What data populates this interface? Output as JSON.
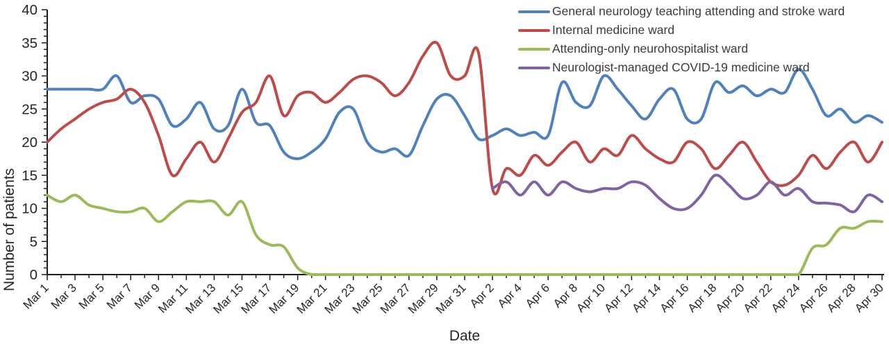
{
  "chart_data": {
    "type": "line",
    "title": "",
    "xlabel": "Date",
    "ylabel": "Number of patients",
    "ylim": [
      0,
      40
    ],
    "y_major_step": 5,
    "y_minor_step": 1,
    "x_label_every_days": 2,
    "grid": false,
    "legend_position": "top-right",
    "x": [
      "Mar 1",
      "Mar 2",
      "Mar 3",
      "Mar 4",
      "Mar 5",
      "Mar 6",
      "Mar 7",
      "Mar 8",
      "Mar 9",
      "Mar 10",
      "Mar 11",
      "Mar 12",
      "Mar 13",
      "Mar 14",
      "Mar 15",
      "Mar 16",
      "Mar 17",
      "Mar 18",
      "Mar 19",
      "Mar 20",
      "Mar 21",
      "Mar 22",
      "Mar 23",
      "Mar 24",
      "Mar 25",
      "Mar 26",
      "Mar 27",
      "Mar 28",
      "Mar 29",
      "Mar 30",
      "Mar 31",
      "Apr 1",
      "Apr 2",
      "Apr 3",
      "Apr 4",
      "Apr 5",
      "Apr 6",
      "Apr 7",
      "Apr 8",
      "Apr 9",
      "Apr 10",
      "Apr 11",
      "Apr 12",
      "Apr 13",
      "Apr 14",
      "Apr 15",
      "Apr 16",
      "Apr 17",
      "Apr 18",
      "Apr 19",
      "Apr 20",
      "Apr 21",
      "Apr 22",
      "Apr 23",
      "Apr 24",
      "Apr 25",
      "Apr 26",
      "Apr 27",
      "Apr 28",
      "Apr 29",
      "Apr 30"
    ],
    "series": [
      {
        "name": "General neurology teaching attending and stroke ward",
        "color": "#4F81BD",
        "values": [
          28,
          28,
          28,
          28,
          28,
          30,
          26,
          27,
          26.5,
          22.5,
          23.5,
          26,
          22,
          22.5,
          28,
          23,
          22.5,
          18.5,
          17.5,
          18.5,
          20.5,
          24.5,
          25,
          20,
          18.5,
          19,
          18,
          22.5,
          26.5,
          27,
          24,
          20.5,
          21,
          22,
          21,
          21.5,
          21,
          29,
          26,
          25.5,
          30,
          28,
          25.5,
          23.5,
          26.5,
          28,
          23.5,
          23.5,
          29,
          27.5,
          28.5,
          27,
          28,
          27.5,
          31,
          28,
          24,
          25,
          23,
          24,
          23
        ]
      },
      {
        "name": "Internal medicine ward",
        "color": "#BE4B48",
        "values": [
          20,
          22,
          23.5,
          25,
          26,
          26.5,
          28,
          26,
          21,
          15,
          17.5,
          20,
          17,
          20.5,
          24.5,
          26,
          30,
          24,
          27,
          27.5,
          26,
          27.5,
          29.5,
          30,
          29,
          27,
          29,
          33,
          35,
          30,
          30,
          33.5,
          13,
          16,
          15,
          18,
          16.5,
          18.5,
          20,
          17,
          19,
          18,
          21,
          19,
          17.5,
          17,
          20,
          19,
          16,
          18,
          20,
          17,
          14,
          13.5,
          15,
          18,
          16,
          18.5,
          20,
          17,
          20
        ]
      },
      {
        "name": "Attending-only neurohospitalist ward",
        "color": "#9BBB59",
        "values": [
          12,
          11,
          12,
          10.5,
          10,
          9.5,
          9.5,
          10,
          8,
          9.5,
          11,
          11,
          11,
          9,
          11,
          6,
          4.5,
          4.2,
          1,
          0,
          0,
          0,
          0,
          0,
          0,
          0,
          0,
          0,
          0,
          0,
          0,
          0,
          0,
          0,
          0,
          0,
          0,
          0,
          0,
          0,
          0,
          0,
          0,
          0,
          0,
          0,
          0,
          0,
          0,
          0,
          0,
          0,
          0,
          0,
          0,
          4,
          4.5,
          7,
          7,
          8,
          8
        ]
      },
      {
        "name": "Neurologist-managed COVID-19 medicine ward",
        "color": "#8064A2",
        "values": [
          null,
          null,
          null,
          null,
          null,
          null,
          null,
          null,
          null,
          null,
          null,
          null,
          null,
          null,
          null,
          null,
          null,
          null,
          null,
          null,
          null,
          null,
          null,
          null,
          null,
          null,
          null,
          null,
          null,
          null,
          null,
          null,
          13,
          14,
          12,
          14,
          12,
          14,
          13,
          12.5,
          13,
          13,
          14,
          13.5,
          11.5,
          10,
          10,
          12,
          15,
          13.5,
          11.5,
          12,
          14,
          12,
          13,
          11,
          10.8,
          10.5,
          9.5,
          12,
          11
        ]
      }
    ]
  },
  "axis": {
    "y_tick_labels": [
      "0",
      "5",
      "10",
      "15",
      "20",
      "25",
      "30",
      "35",
      "40"
    ]
  }
}
